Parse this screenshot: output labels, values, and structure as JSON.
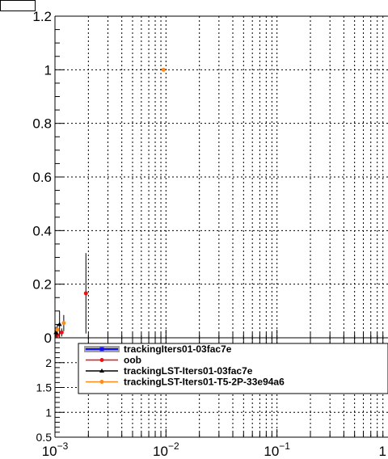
{
  "chart_data": [
    {
      "type": "scatter",
      "title": "",
      "xlabel": "",
      "ylabel": "",
      "xscale": "log",
      "xlim": [
        0.001,
        1
      ],
      "ylim": [
        0,
        1.2
      ],
      "grid": true,
      "grid_style": "dotted",
      "y_ticks": [
        {
          "value": 0,
          "label": "0"
        },
        {
          "value": 0.2,
          "label": "0.2"
        },
        {
          "value": 0.4,
          "label": "0.4"
        },
        {
          "value": 0.6,
          "label": "0.6"
        },
        {
          "value": 0.8,
          "label": "0.8"
        },
        {
          "value": 1.0,
          "label": "1"
        },
        {
          "value": 1.2,
          "label": "1.2"
        }
      ],
      "series": [
        {
          "name": "trackingIters01-03fac7e",
          "color": "#1010ff",
          "marker": "square",
          "fill": "#a0a0a0",
          "points": []
        },
        {
          "name": "oob",
          "color": "#ee1111",
          "marker": "circle",
          "points": [
            {
              "x": 0.00105,
              "y": 0.01,
              "yerr": 0.01
            },
            {
              "x": 0.00115,
              "y": 0.02,
              "yerr": 0.015
            },
            {
              "x": 0.0019,
              "y": 0.166,
              "yerr": 0.15
            }
          ]
        },
        {
          "name": "trackingLST-Iters01-03fac7e",
          "color": "#000000",
          "marker": "triangle",
          "points": [
            {
              "x": 0.00102,
              "y": 0.02,
              "yerr": 0.02
            },
            {
              "x": 0.0011,
              "y": 0.05,
              "yerr": 0.05
            }
          ]
        },
        {
          "name": "trackingLST-Iters01-T5-2P-33e94a6",
          "color": "#ff8c1a",
          "marker": "circle",
          "points": [
            {
              "x": 0.00105,
              "y": 0.03,
              "yerr": 0.02
            },
            {
              "x": 0.0012,
              "y": 0.055,
              "yerr": 0.03
            },
            {
              "x": 0.0095,
              "y": 1.0,
              "yerr": 0
            }
          ]
        }
      ]
    },
    {
      "type": "scatter",
      "title": "",
      "xlabel": "",
      "ylabel": "",
      "xscale": "log",
      "xlim": [
        0.001,
        1
      ],
      "ylim": [
        0.5,
        2.5
      ],
      "grid": true,
      "grid_style": "dotted",
      "y_ticks": [
        {
          "value": 0.5,
          "label": "0.5"
        },
        {
          "value": 1.0,
          "label": "1"
        },
        {
          "value": 1.5,
          "label": "1.5"
        },
        {
          "value": 2.0,
          "label": "2"
        }
      ],
      "x_ticks": [
        {
          "value": 0.001,
          "base": "10",
          "exp": "−3"
        },
        {
          "value": 0.01,
          "base": "10",
          "exp": "−2"
        },
        {
          "value": 0.1,
          "base": "10",
          "exp": "−1"
        },
        {
          "value": 1,
          "base": "1",
          "exp": ""
        }
      ],
      "series": []
    }
  ],
  "legend": {
    "placement": "top",
    "entries": [
      {
        "label": "trackingIters01-03fac7e",
        "color": "#1010ff",
        "marker": "square",
        "band": "#a0a0a0"
      },
      {
        "label": "oob",
        "color": "#ee1111",
        "marker": "circle"
      },
      {
        "label": "trackingLST-Iters01-03fac7e",
        "color": "#000000",
        "marker": "triangle"
      },
      {
        "label": "trackingLST-Iters01-T5-2P-33e94a6",
        "color": "#ff8c1a",
        "marker": "circle"
      }
    ]
  }
}
